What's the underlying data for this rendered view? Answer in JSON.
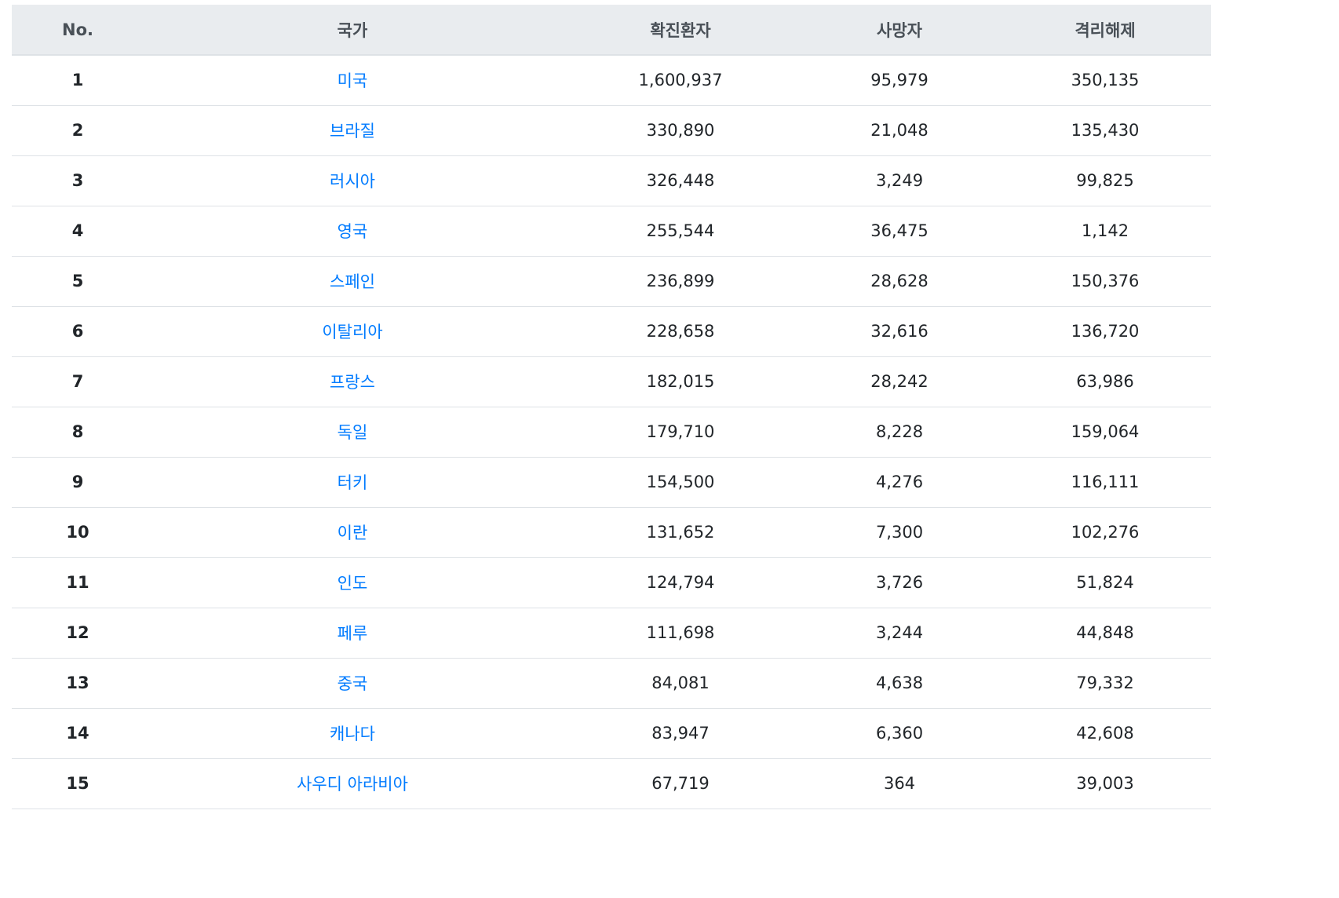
{
  "table": {
    "headers": {
      "no": "No.",
      "country": "국가",
      "confirmed": "확진환자",
      "deaths": "사망자",
      "recovered": "격리해제"
    },
    "rows": [
      {
        "no": "1",
        "country": "미국",
        "confirmed": "1,600,937",
        "deaths": "95,979",
        "recovered": "350,135"
      },
      {
        "no": "2",
        "country": "브라질",
        "confirmed": "330,890",
        "deaths": "21,048",
        "recovered": "135,430"
      },
      {
        "no": "3",
        "country": "러시아",
        "confirmed": "326,448",
        "deaths": "3,249",
        "recovered": "99,825"
      },
      {
        "no": "4",
        "country": "영국",
        "confirmed": "255,544",
        "deaths": "36,475",
        "recovered": "1,142"
      },
      {
        "no": "5",
        "country": "스페인",
        "confirmed": "236,899",
        "deaths": "28,628",
        "recovered": "150,376"
      },
      {
        "no": "6",
        "country": "이탈리아",
        "confirmed": "228,658",
        "deaths": "32,616",
        "recovered": "136,720"
      },
      {
        "no": "7",
        "country": "프랑스",
        "confirmed": "182,015",
        "deaths": "28,242",
        "recovered": "63,986"
      },
      {
        "no": "8",
        "country": "독일",
        "confirmed": "179,710",
        "deaths": "8,228",
        "recovered": "159,064"
      },
      {
        "no": "9",
        "country": "터키",
        "confirmed": "154,500",
        "deaths": "4,276",
        "recovered": "116,111"
      },
      {
        "no": "10",
        "country": "이란",
        "confirmed": "131,652",
        "deaths": "7,300",
        "recovered": "102,276"
      },
      {
        "no": "11",
        "country": "인도",
        "confirmed": "124,794",
        "deaths": "3,726",
        "recovered": "51,824"
      },
      {
        "no": "12",
        "country": "페루",
        "confirmed": "111,698",
        "deaths": "3,244",
        "recovered": "44,848"
      },
      {
        "no": "13",
        "country": "중국",
        "confirmed": "84,081",
        "deaths": "4,638",
        "recovered": "79,332"
      },
      {
        "no": "14",
        "country": "캐나다",
        "confirmed": "83,947",
        "deaths": "6,360",
        "recovered": "42,608"
      },
      {
        "no": "15",
        "country": "사우디 아라비아",
        "confirmed": "67,719",
        "deaths": "364",
        "recovered": "39,003"
      }
    ]
  },
  "colors": {
    "header_bg": "#e9ecef",
    "link": "#007bff",
    "border": "#dee2e6",
    "text": "#212529"
  }
}
